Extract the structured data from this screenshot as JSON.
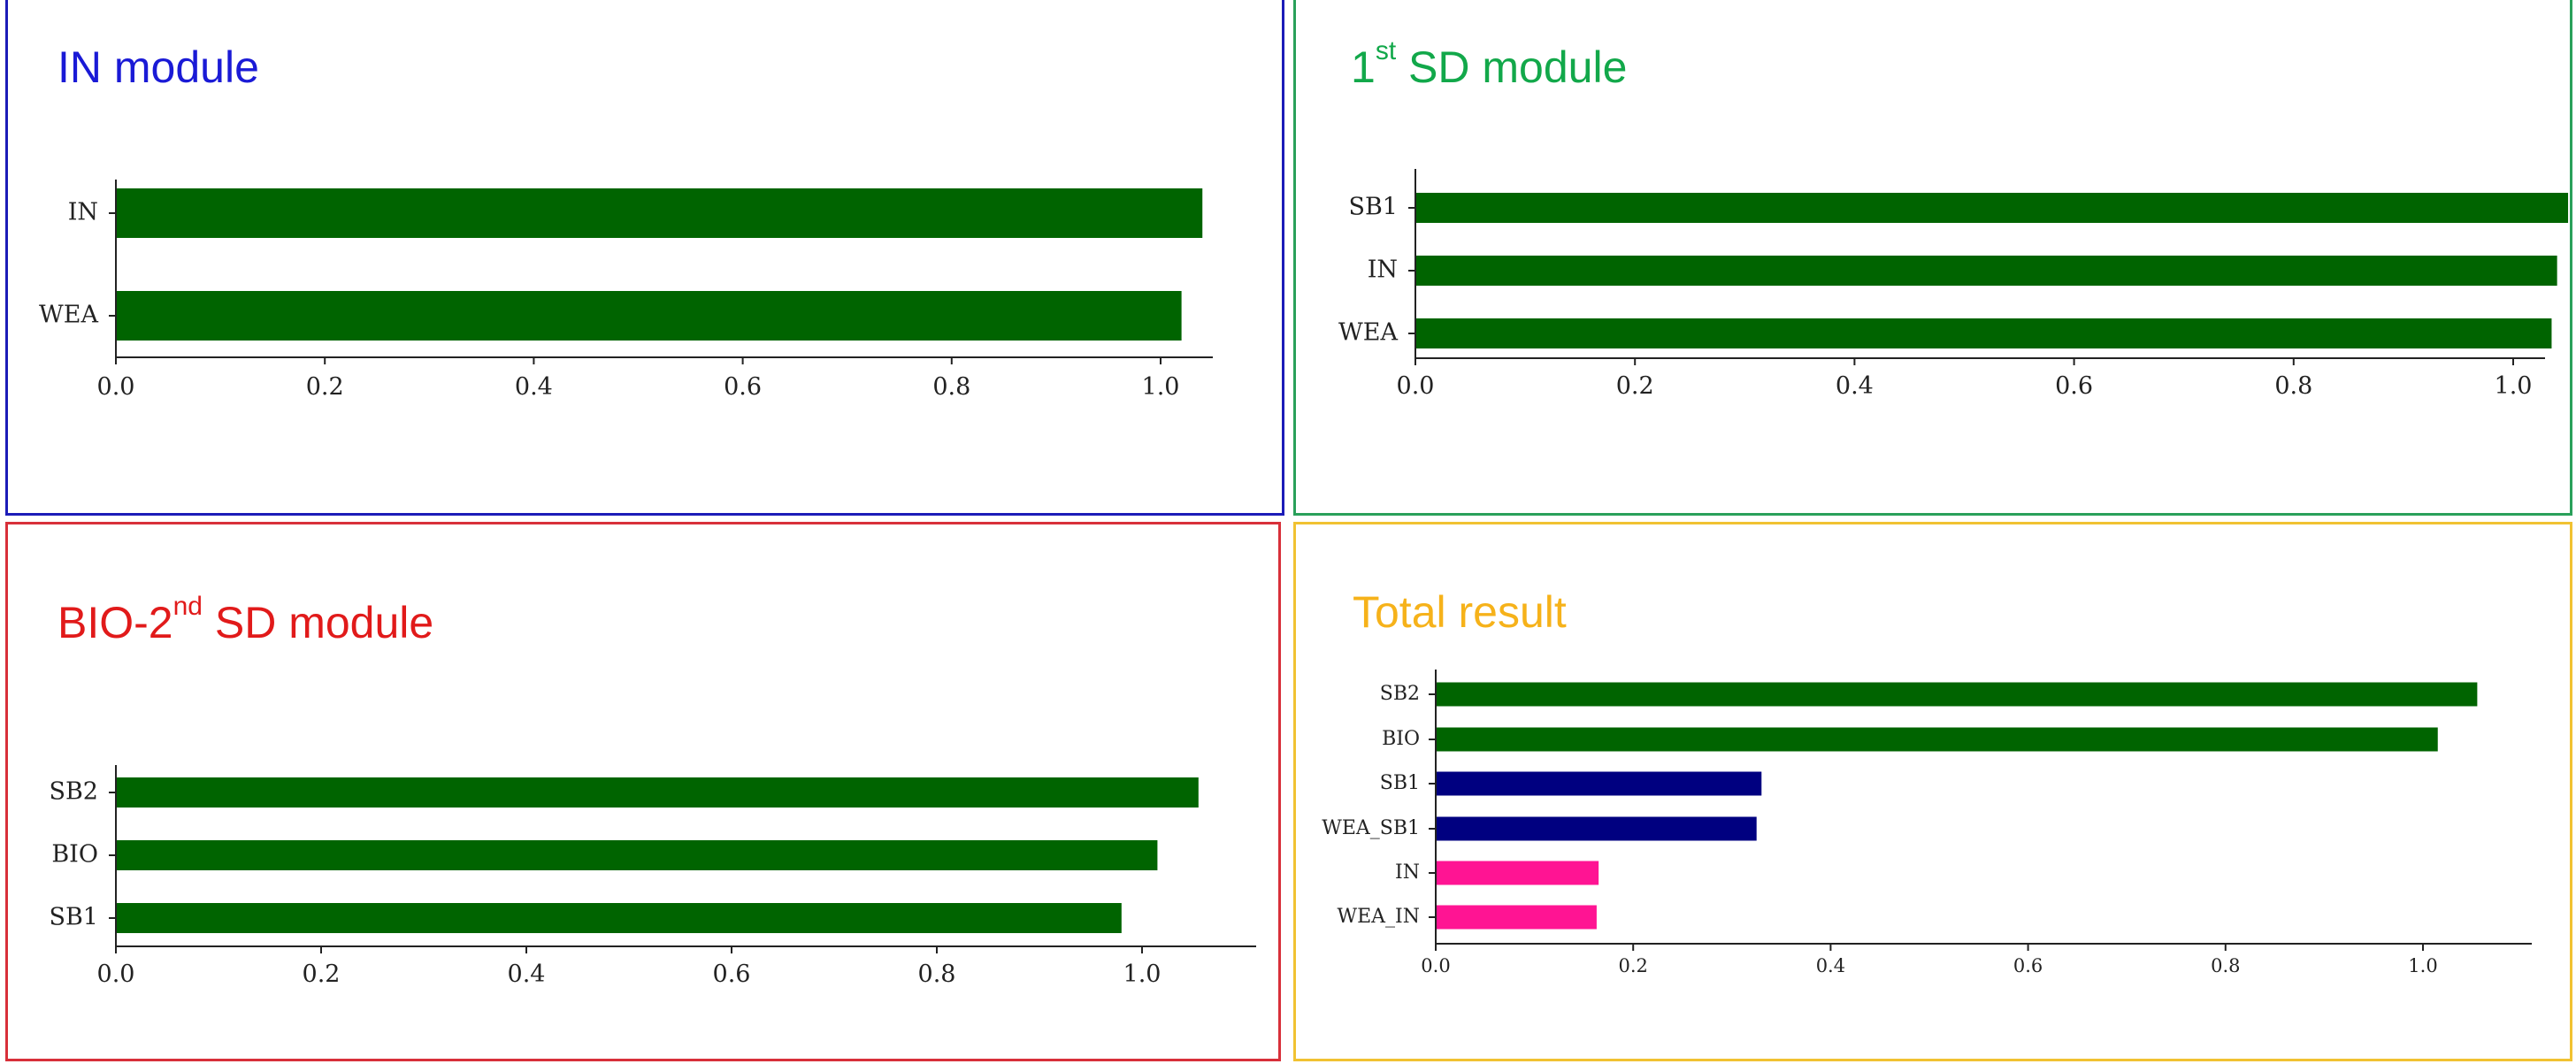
{
  "panels": [
    {
      "id": "in",
      "title_main": "IN module",
      "title_sup": "",
      "title_after": "",
      "border_color": "#1c1cb8",
      "title_color": "#1a1ad6"
    },
    {
      "id": "sd1",
      "title_main": "1",
      "title_sup": "st",
      "title_after": " SD module",
      "border_color": "#2aa05a",
      "title_color": "#12a84a"
    },
    {
      "id": "bio",
      "title_main": "BIO-2",
      "title_sup": "nd",
      "title_after": " SD module",
      "border_color": "#d8303a",
      "title_color": "#e11a1a"
    },
    {
      "id": "total",
      "title_main": "Total result",
      "title_sup": "",
      "title_after": "",
      "border_color": "#f1c232",
      "title_color": "#f6b21a"
    }
  ],
  "chart_data": [
    {
      "type": "bar",
      "orientation": "horizontal",
      "categories": [
        "IN",
        "WEA"
      ],
      "values": [
        1.04,
        1.02
      ],
      "colors": [
        "#006400",
        "#006400"
      ],
      "xlim": [
        0,
        1.1
      ],
      "xticks": [
        "0.0",
        "0.2",
        "0.4",
        "0.6",
        "0.8",
        "1.0"
      ]
    },
    {
      "type": "bar",
      "orientation": "horizontal",
      "categories": [
        "SB1",
        "IN",
        "WEA"
      ],
      "values": [
        1.05,
        1.04,
        1.035
      ],
      "colors": [
        "#006400",
        "#006400",
        "#006400"
      ],
      "xlim": [
        0,
        1.11
      ],
      "xticks": [
        "0.0",
        "0.2",
        "0.4",
        "0.6",
        "0.8",
        "1.0"
      ]
    },
    {
      "type": "bar",
      "orientation": "horizontal",
      "categories": [
        "SB2",
        "BIO",
        "SB1"
      ],
      "values": [
        1.055,
        1.015,
        0.98
      ],
      "colors": [
        "#006400",
        "#006400",
        "#006400"
      ],
      "xlim": [
        0,
        1.11
      ],
      "xticks": [
        "0.0",
        "0.2",
        "0.4",
        "0.6",
        "0.8",
        "1.0"
      ]
    },
    {
      "type": "bar",
      "orientation": "horizontal",
      "categories": [
        "SB2",
        "BIO",
        "SB1",
        "WEA_SB1",
        "IN",
        "WEA_IN"
      ],
      "values": [
        1.055,
        1.015,
        0.33,
        0.325,
        0.165,
        0.163
      ],
      "colors": [
        "#006400",
        "#006400",
        "#000080",
        "#000080",
        "#ff1493",
        "#ff1493"
      ],
      "xlim": [
        0,
        1.11
      ],
      "xticks": [
        "0.0",
        "0.2",
        "0.4",
        "0.6",
        "0.8",
        "1.0"
      ]
    }
  ]
}
